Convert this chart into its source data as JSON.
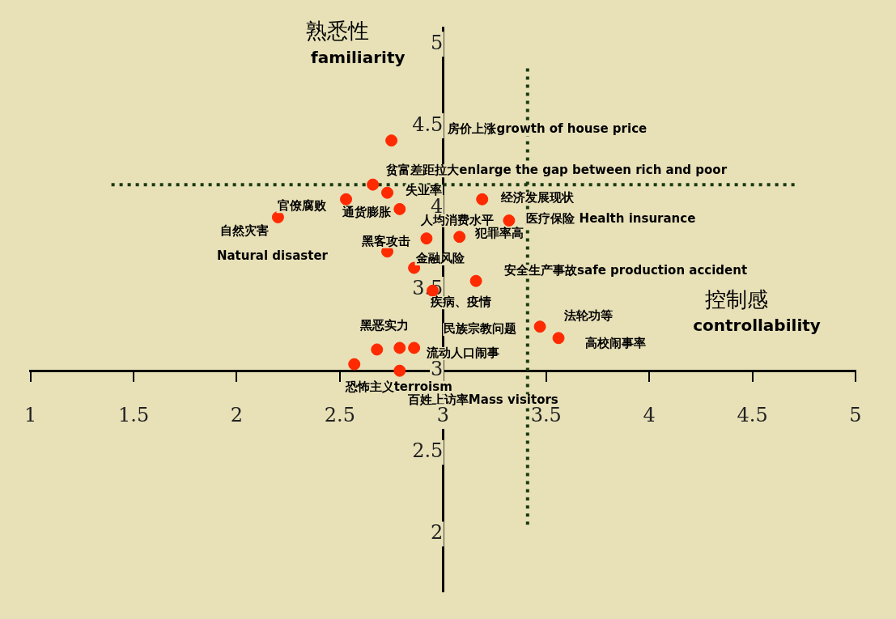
{
  "chart_data": {
    "type": "scatter",
    "xlabel": "控制感\ncontrollability",
    "ylabel": "熟悉性\nfamiliarity",
    "x": [
      2.75,
      2.66,
      2.73,
      2.53,
      2.79,
      2.2,
      3.19,
      3.32,
      2.92,
      3.08,
      2.73,
      2.86,
      3.16,
      2.95,
      3.47,
      3.56,
      2.68,
      2.79,
      2.86,
      2.57,
      2.79
    ],
    "values": [
      4.41,
      4.14,
      4.09,
      4.05,
      3.99,
      3.94,
      4.05,
      3.92,
      3.81,
      3.82,
      3.73,
      3.63,
      3.55,
      3.49,
      3.27,
      3.2,
      3.13,
      3.14,
      3.14,
      3.04,
      3.0
    ],
    "color": "#ff2a00",
    "marker": "circle",
    "grid": false,
    "legend": false,
    "xlim": [
      1,
      5
    ],
    "xticks": [
      1,
      1.5,
      2,
      2.5,
      3,
      3.5,
      4,
      4.5,
      5
    ],
    "ylim": [
      1.65,
      5.1
    ],
    "yticks": [
      2,
      2.5,
      3,
      3.5,
      4,
      4.5,
      5
    ],
    "ref_lines": [
      {
        "axis": "y",
        "value": 4.14,
        "color": "#1a3a10",
        "line_style": "dotted"
      },
      {
        "axis": "x",
        "value": 3.41,
        "color": "#1a3a10",
        "line_style": "dotted"
      }
    ],
    "annotations": [
      "房价上涨growth of house price",
      {
        "text": "贫富差距拉大enlarge the gap between rich and poor",
        "x": 2.66,
        "y": 4.14
      },
      {
        "text": "失业率",
        "x": 2.73,
        "y": 4.09
      },
      {
        "text": "官僚腐败",
        "x": 2.53,
        "y": 4.05
      },
      {
        "text": "通货膨胀",
        "x": 2.79,
        "y": 3.99
      },
      {
        "text": "自然灾害",
        "x": 2.2,
        "y": 3.94
      },
      {
        "text": "Natural disaster",
        "x": 2.2,
        "y": 3.94
      },
      {
        "text": "经济发展现状",
        "x": 3.19,
        "y": 4.05
      },
      {
        "text": "人均消费水平",
        "x": 2.92,
        "y": 3.81
      },
      {
        "text": "医疗保险 Health insurance",
        "x": 3.32,
        "y": 3.92
      },
      {
        "text": "犯罪率高",
        "x": 3.08,
        "y": 3.82
      },
      {
        "text": "黑客攻击",
        "x": 2.73,
        "y": 3.73
      },
      {
        "text": "金融风险",
        "x": 2.86,
        "y": 3.63
      },
      {
        "text": "安全生产事故safe production accident",
        "x": 3.16,
        "y": 3.55
      },
      {
        "text": "疾病、疫情",
        "x": 2.95,
        "y": 3.49
      },
      {
        "text": "法轮功等",
        "x": 3.47,
        "y": 3.27
      },
      {
        "text": "高校闹事率",
        "x": 3.56,
        "y": 3.2
      },
      {
        "text": "黑恶实力",
        "x": 2.68,
        "y": 3.13
      },
      "民族宗教问题",
      {
        "text": "流动人口闹事",
        "x": 2.86,
        "y": 3.14
      },
      {
        "text": "恐怖主义terroism",
        "x": 2.57,
        "y": 3.04
      },
      {
        "text": "百姓上访率Mass visitors",
        "x": 2.79,
        "y": 3.0
      }
    ]
  }
}
